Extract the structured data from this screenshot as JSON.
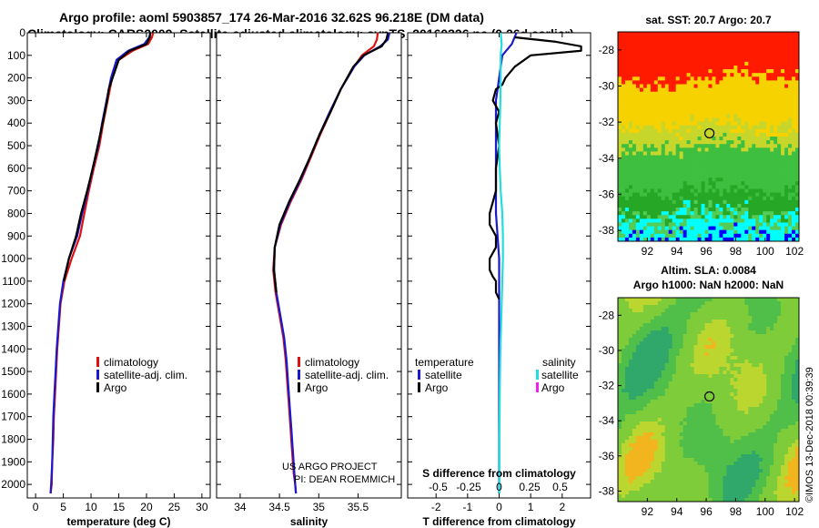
{
  "header": {
    "title_line1": "Argo profile: aoml 5903857_174 26-Mar-2016 32.62S 96.218E (DM data)",
    "title_line2": "Climatology: CARS2009. Satellite-adjusted climatology: synTS_20160326.nc (0.26d earlier)"
  },
  "credits": {
    "project": "US ARGO PROJECT",
    "pi": "PI: DEAN ROEMMICH",
    "stamp": "©IMOS 13-Dec-2018 00:39:39"
  },
  "colors": {
    "climatology": "#dd1111",
    "satellite": "#1a1acc",
    "argo": "#000000",
    "satellite_salinity": "#22dddd",
    "argo_salinity": "#ee22ee",
    "map_red": "#ff1a00",
    "map_yellow": "#f5d200",
    "map_green": "#3fbf3f",
    "map_cyan": "#00ffff",
    "map_blue": "#0000ff"
  },
  "chart_data": [
    {
      "type": "line",
      "name": "temperature-profile",
      "title": "",
      "xlabel": "temperature (deg C)",
      "ylabel": "",
      "xlim": [
        -1.5,
        31.5
      ],
      "ylim": [
        2060,
        0
      ],
      "x_ticks": [
        0,
        5,
        10,
        15,
        20,
        25,
        30
      ],
      "x_tick_labels": [
        "0",
        "5",
        "10",
        "15",
        "20",
        "25",
        "30"
      ],
      "y_ticks": [
        0,
        100,
        200,
        300,
        400,
        500,
        600,
        700,
        800,
        900,
        1000,
        1100,
        1200,
        1300,
        1400,
        1500,
        1600,
        1700,
        1800,
        1900,
        2000
      ],
      "y_tick_labels": [
        "0",
        "100",
        "200",
        "300",
        "400",
        "500",
        "600",
        "700",
        "800",
        "900",
        "1000",
        "1100",
        "1200",
        "1300",
        "1400",
        "1500",
        "1600",
        "1700",
        "1800",
        "1900",
        "2000"
      ],
      "legend": [
        "climatology",
        "satellite-adj. clim.",
        "Argo"
      ],
      "legend_position": "lower-right",
      "series": [
        {
          "name": "climatology",
          "color_key": "climatology",
          "x": [
            21.2,
            21.0,
            20.3,
            17.5,
            15.0,
            13.8,
            13.0,
            12.2,
            11.5,
            10.5,
            9.6,
            8.8,
            8.0,
            6.5,
            5.2,
            4.5,
            4.2,
            3.9,
            3.7,
            3.5,
            3.3,
            3.2,
            3.0,
            2.9,
            2.7
          ],
          "y": [
            0,
            20,
            50,
            80,
            120,
            200,
            300,
            400,
            500,
            600,
            700,
            800,
            900,
            1000,
            1100,
            1200,
            1300,
            1400,
            1500,
            1600,
            1700,
            1800,
            1900,
            2000,
            2040
          ]
        },
        {
          "name": "satellite-adj. clim.",
          "color_key": "satellite",
          "x": [
            20.7,
            20.5,
            19.6,
            16.7,
            14.6,
            13.6,
            12.8,
            12.0,
            11.3,
            10.3,
            9.4,
            8.4,
            7.5,
            6.0,
            5.0,
            4.4,
            4.1,
            3.8,
            3.6,
            3.4,
            3.2,
            3.1,
            3.0,
            2.8,
            2.7
          ],
          "y": [
            0,
            20,
            50,
            80,
            120,
            200,
            300,
            400,
            500,
            600,
            700,
            800,
            900,
            1000,
            1100,
            1200,
            1300,
            1400,
            1500,
            1600,
            1700,
            1800,
            1900,
            2000,
            2040
          ]
        },
        {
          "name": "Argo",
          "color_key": "argo",
          "x": [
            20.7,
            20.6,
            20.0,
            17.0,
            15.0,
            13.2,
            12.9,
            12.1,
            11.2,
            10.3,
            9.3,
            8.2,
            7.3,
            6.0,
            5.1
          ],
          "y": [
            0,
            20,
            50,
            80,
            120,
            250,
            300,
            400,
            500,
            600,
            700,
            800,
            900,
            1000,
            1100
          ]
        }
      ]
    },
    {
      "type": "line",
      "name": "salinity-profile",
      "title": "",
      "xlabel": "salinity",
      "ylabel": "",
      "xlim": [
        33.7,
        36.05
      ],
      "ylim": [
        2060,
        0
      ],
      "x_ticks": [
        34,
        34.5,
        35,
        35.5
      ],
      "x_tick_labels": [
        "34",
        "34.5",
        "35",
        "35.5"
      ],
      "legend": [
        "climatology",
        "satellite-adj. clim.",
        "Argo"
      ],
      "legend_position": "lower-left",
      "series": [
        {
          "name": "climatology",
          "color_key": "climatology",
          "x": [
            35.75,
            35.74,
            35.7,
            35.55,
            35.45,
            35.28,
            35.15,
            35.02,
            34.9,
            34.78,
            34.64,
            34.52,
            34.44,
            34.42,
            34.45,
            34.5,
            34.55,
            34.58,
            34.6,
            34.62,
            34.64,
            34.66,
            34.68,
            34.7,
            34.71
          ],
          "y": [
            0,
            30,
            60,
            100,
            150,
            250,
            350,
            450,
            550,
            650,
            750,
            850,
            950,
            1050,
            1150,
            1250,
            1350,
            1450,
            1550,
            1650,
            1750,
            1850,
            1950,
            2000,
            2040
          ]
        },
        {
          "name": "satellite-adj. clim.",
          "color_key": "satellite",
          "x": [
            35.9,
            35.88,
            35.78,
            35.58,
            35.45,
            35.28,
            35.14,
            35.01,
            34.89,
            34.77,
            34.63,
            34.51,
            34.44,
            34.43,
            34.46,
            34.51,
            34.56,
            34.59,
            34.61,
            34.63,
            34.65,
            34.67,
            34.69,
            34.7,
            34.71
          ],
          "y": [
            0,
            30,
            60,
            100,
            150,
            250,
            350,
            450,
            550,
            650,
            750,
            850,
            950,
            1050,
            1150,
            1250,
            1350,
            1450,
            1550,
            1650,
            1750,
            1850,
            1950,
            2000,
            2040
          ]
        },
        {
          "name": "Argo",
          "color_key": "argo",
          "x": [
            35.88,
            35.86,
            35.8,
            35.57,
            35.44,
            35.28,
            35.15,
            35.01,
            34.89,
            34.76,
            34.62,
            34.5,
            34.44,
            34.43,
            34.46
          ],
          "y": [
            0,
            30,
            60,
            100,
            150,
            250,
            350,
            450,
            550,
            650,
            750,
            850,
            950,
            1050,
            1150
          ]
        }
      ]
    },
    {
      "type": "line",
      "name": "difference-profile",
      "title": "S difference from climatology",
      "xlabel": "T difference from climatology",
      "ylabel": "",
      "xlim": [
        -2.9,
        2.9
      ],
      "ylim": [
        2060,
        0
      ],
      "x_ticks": [
        -2,
        -1,
        0,
        1,
        2
      ],
      "x_tick_labels": [
        "-2",
        "-1",
        "0",
        "1",
        "2"
      ],
      "top_ticks": [
        -0.5,
        -0.25,
        0,
        0.25,
        0.5
      ],
      "top_tick_labels": [
        "-0.5",
        "-0.25",
        "0",
        "0.25",
        "0.5"
      ],
      "legend_left_title": "temperature",
      "legend_right_title": "salinity",
      "legend_left": [
        "satellite",
        "Argo"
      ],
      "legend_right": [
        "satellite",
        "Argo"
      ],
      "series": [
        {
          "name": "T satellite",
          "color_key": "satellite",
          "x": [
            0.55,
            0.4,
            0.1,
            0.0,
            -0.1,
            -0.1,
            -0.1,
            -0.1,
            -0.1,
            -0.1,
            -0.05,
            0.0,
            0.0,
            0.0,
            0.0,
            0.0,
            0.0,
            0.0,
            0.0,
            0.0,
            0.0
          ],
          "y": [
            0,
            50,
            100,
            200,
            300,
            400,
            500,
            600,
            700,
            800,
            900,
            1000,
            1100,
            1200,
            1300,
            1400,
            1500,
            1600,
            1800,
            2000,
            2040
          ]
        },
        {
          "name": "T Argo",
          "color_key": "argo",
          "x": [
            0.5,
            1.8,
            2.6,
            2.6,
            1.0,
            0.5,
            0.2,
            0.1,
            -0.1,
            -0.2,
            0.0,
            -0.1,
            0.0,
            -0.1,
            -0.1,
            -0.3,
            -0.3,
            -0.1,
            -0.1,
            -0.3,
            -0.3,
            -0.2,
            -0.1,
            -0.1,
            0.0
          ],
          "y": [
            20,
            40,
            60,
            80,
            100,
            150,
            200,
            230,
            250,
            300,
            350,
            400,
            500,
            600,
            700,
            800,
            850,
            900,
            950,
            1000,
            1050,
            1080,
            1100,
            1150,
            1180
          ]
        },
        {
          "name": "S satellite",
          "color_key": "satellite_salinity",
          "x": [
            0.05,
            0.08,
            0.05,
            0.05,
            0.04,
            0.02,
            0.0,
            0.02,
            0.05,
            0.1,
            0.12,
            0.12,
            0.1,
            0.08,
            0.06,
            0.04,
            0.03,
            0.02,
            0.01,
            0.01,
            0.01
          ],
          "y": [
            0,
            50,
            100,
            200,
            300,
            400,
            500,
            600,
            700,
            800,
            900,
            1000,
            1100,
            1200,
            1300,
            1400,
            1500,
            1600,
            1800,
            2000,
            2040
          ]
        }
      ]
    },
    {
      "type": "heatmap",
      "name": "sst-map",
      "title": "sat. SST: 20.7 Argo: 20.7",
      "xlim": [
        90,
        102.3
      ],
      "ylim": [
        -38.6,
        -27
      ],
      "x_ticks": [
        92,
        94,
        96,
        98,
        100,
        102
      ],
      "x_tick_labels": [
        "92",
        "94",
        "96",
        "98",
        "100",
        "102"
      ],
      "y_ticks": [
        -28,
        -30,
        -32,
        -34,
        -36,
        -38
      ],
      "y_tick_labels": [
        "-28",
        "-30",
        "-32",
        "-34",
        "-36",
        "-38"
      ],
      "marker": {
        "lon": 96.218,
        "lat": -32.62
      }
    },
    {
      "type": "heatmap",
      "name": "sla-map",
      "title": "Altim. SLA: 0.0084",
      "subtitle": "Argo h1000: NaN h2000: NaN",
      "xlim": [
        90,
        102.3
      ],
      "ylim": [
        -38.6,
        -27
      ],
      "x_ticks": [
        92,
        94,
        96,
        98,
        100,
        102
      ],
      "x_tick_labels": [
        "92",
        "94",
        "96",
        "98",
        "100",
        "102"
      ],
      "y_ticks": [
        -28,
        -30,
        -32,
        -34,
        -36,
        -38
      ],
      "y_tick_labels": [
        "-28",
        "-30",
        "-32",
        "-34",
        "-36",
        "-38"
      ],
      "marker": {
        "lon": 96.218,
        "lat": -32.62
      }
    }
  ]
}
